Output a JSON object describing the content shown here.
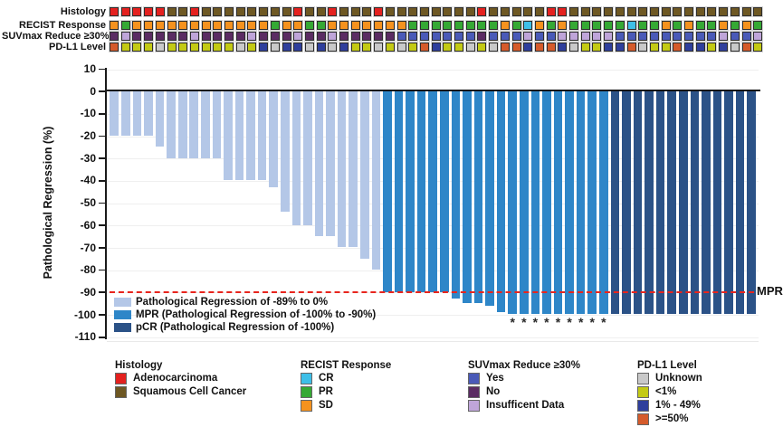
{
  "figure": {
    "ylabel": "Pathological Regression (%)",
    "mpr_label": "MPR",
    "asterisk_symbol": "*"
  },
  "tracks": {
    "labels": [
      "Histology",
      "RECIST Response",
      "SUVmax Reduce ≥30%",
      "PD-L1 Level"
    ],
    "palette": {
      "adeno": "#e4211f",
      "squam": "#6e5823",
      "cr": "#3ebfe8",
      "pr": "#35a934",
      "sd": "#f5921e",
      "yes": "#4a5ab8",
      "no": "#5b2c63",
      "insuf": "#bfa5d9",
      "unk": "#c9c9c9",
      "lt1": "#c3ca14",
      "p1_49": "#2f3f9c",
      "ge50": "#d55b2b"
    },
    "rows": [
      {
        "name": "histology",
        "keys": [
          "adeno",
          "adeno",
          "adeno",
          "adeno",
          "adeno",
          "squam",
          "squam",
          "adeno",
          "squam",
          "squam",
          "squam",
          "squam",
          "squam",
          "squam",
          "squam",
          "squam",
          "adeno",
          "squam",
          "squam",
          "adeno",
          "squam",
          "squam",
          "squam",
          "adeno",
          "squam",
          "squam",
          "squam",
          "squam",
          "squam",
          "squam",
          "squam",
          "squam",
          "adeno",
          "squam",
          "squam",
          "squam",
          "squam",
          "squam",
          "adeno",
          "adeno",
          "squam",
          "squam",
          "squam",
          "squam",
          "squam",
          "squam",
          "squam",
          "squam",
          "squam",
          "squam",
          "squam",
          "squam",
          "squam",
          "squam",
          "squam",
          "squam",
          "squam"
        ]
      },
      {
        "name": "recist-response",
        "keys": [
          "sd",
          "pr",
          "sd",
          "sd",
          "sd",
          "sd",
          "sd",
          "sd",
          "sd",
          "sd",
          "sd",
          "sd",
          "sd",
          "sd",
          "pr",
          "sd",
          "sd",
          "pr",
          "pr",
          "sd",
          "sd",
          "sd",
          "sd",
          "sd",
          "sd",
          "sd",
          "pr",
          "pr",
          "pr",
          "pr",
          "pr",
          "pr",
          "pr",
          "pr",
          "sd",
          "pr",
          "cr",
          "sd",
          "pr",
          "sd",
          "pr",
          "pr",
          "pr",
          "pr",
          "pr",
          "cr",
          "pr",
          "pr",
          "sd",
          "pr",
          "sd",
          "pr",
          "pr",
          "sd",
          "pr",
          "sd",
          "pr"
        ]
      },
      {
        "name": "suvmax-reduce",
        "keys": [
          "no",
          "insuf",
          "no",
          "no",
          "no",
          "no",
          "no",
          "insuf",
          "no",
          "no",
          "no",
          "no",
          "insuf",
          "no",
          "no",
          "no",
          "insuf",
          "no",
          "no",
          "insuf",
          "no",
          "no",
          "no",
          "no",
          "no",
          "yes",
          "yes",
          "yes",
          "yes",
          "yes",
          "yes",
          "yes",
          "no",
          "yes",
          "yes",
          "yes",
          "insuf",
          "yes",
          "yes",
          "insuf",
          "insuf",
          "insuf",
          "insuf",
          "insuf",
          "yes",
          "yes",
          "yes",
          "yes",
          "yes",
          "yes",
          "yes",
          "yes",
          "yes",
          "insuf",
          "yes",
          "yes",
          "insuf"
        ]
      },
      {
        "name": "pdl1-level",
        "keys": [
          "ge50",
          "lt1",
          "lt1",
          "lt1",
          "unk",
          "lt1",
          "lt1",
          "lt1",
          "lt1",
          "lt1",
          "lt1",
          "unk",
          "lt1",
          "p1_49",
          "unk",
          "p1_49",
          "p1_49",
          "unk",
          "p1_49",
          "unk",
          "p1_49",
          "lt1",
          "lt1",
          "unk",
          "lt1",
          "unk",
          "lt1",
          "ge50",
          "p1_49",
          "lt1",
          "lt1",
          "unk",
          "lt1",
          "unk",
          "ge50",
          "ge50",
          "p1_49",
          "ge50",
          "ge50",
          "p1_49",
          "unk",
          "lt1",
          "lt1",
          "p1_49",
          "p1_49",
          "ge50",
          "unk",
          "lt1",
          "lt1",
          "ge50",
          "p1_49",
          "p1_49",
          "lt1",
          "p1_49",
          "unk",
          "ge50",
          "lt1"
        ]
      }
    ]
  },
  "chart_data": {
    "type": "bar",
    "title": "",
    "xlabel": "",
    "ylabel": "Pathological Regression (%)",
    "ylim": [
      -110,
      10
    ],
    "yticks": [
      10,
      0,
      -10,
      -20,
      -30,
      -40,
      -50,
      -60,
      -70,
      -80,
      -90,
      -100,
      -110
    ],
    "grid": "faint horizontal gridlines every 10%",
    "n_patients": 57,
    "series": [
      {
        "name": "Pathological Regression (%)",
        "values": [
          -20,
          -20,
          -20,
          -20,
          -25,
          -30,
          -30,
          -30,
          -30,
          -30,
          -40,
          -40,
          -40,
          -40,
          -43,
          -54,
          -60,
          -60,
          -65,
          -65,
          -70,
          -70,
          -75,
          -80,
          -90,
          -90,
          -90,
          -90,
          -90,
          -90,
          -93,
          -95,
          -95,
          -96,
          -99,
          -100,
          -100,
          -100,
          -100,
          -100,
          -100,
          -100,
          -100,
          -100,
          -100,
          -100,
          -100,
          -100,
          -100,
          -100,
          -100,
          -100,
          -100,
          -100,
          -100,
          -100,
          -100
        ]
      }
    ],
    "bar_groups": [
      "reg",
      "reg",
      "reg",
      "reg",
      "reg",
      "reg",
      "reg",
      "reg",
      "reg",
      "reg",
      "reg",
      "reg",
      "reg",
      "reg",
      "reg",
      "reg",
      "reg",
      "reg",
      "reg",
      "reg",
      "reg",
      "reg",
      "reg",
      "reg",
      "mpr",
      "mpr",
      "mpr",
      "mpr",
      "mpr",
      "mpr",
      "mpr",
      "mpr",
      "mpr",
      "mpr",
      "mpr",
      "mpr",
      "mpr",
      "mpr",
      "mpr",
      "mpr",
      "mpr",
      "mpr",
      "mpr",
      "mpr",
      "pcr",
      "pcr",
      "pcr",
      "pcr",
      "pcr",
      "pcr",
      "pcr",
      "pcr",
      "pcr",
      "pcr",
      "pcr",
      "pcr",
      "pcr"
    ],
    "group_colors": {
      "reg": "#b4c7e7",
      "mpr": "#2e86c8",
      "pcr": "#2b5287"
    },
    "reference_line": {
      "value": -90,
      "style": "dashed",
      "color": "#e8251d",
      "label": "MPR"
    },
    "asterisk_bar_indices": [
      36,
      37,
      38,
      39,
      40,
      41,
      42,
      43,
      44
    ],
    "legend_position": "inside bottom-left",
    "legend": [
      {
        "key": "reg",
        "color": "#b4c7e7",
        "label": "Pathological Regression of -89% to 0%"
      },
      {
        "key": "mpr",
        "color": "#2e86c8",
        "label": "MPR (Pathological Regression of -100% to -90%)"
      },
      {
        "key": "pcr",
        "color": "#2b5287",
        "label": "pCR (Pathological Regression of -100%)"
      }
    ]
  },
  "legend_groups": [
    {
      "title": "Histology",
      "items": [
        {
          "color": "#e4211f",
          "label": "Adenocarcinoma"
        },
        {
          "color": "#6e5823",
          "label": "Squamous Cell Cancer"
        }
      ]
    },
    {
      "title": "RECIST Response",
      "items": [
        {
          "color": "#3ebfe8",
          "label": "CR"
        },
        {
          "color": "#35a934",
          "label": "PR"
        },
        {
          "color": "#f5921e",
          "label": "SD"
        }
      ]
    },
    {
      "title": "SUVmax Reduce ≥30%",
      "items": [
        {
          "color": "#4a5ab8",
          "label": "Yes"
        },
        {
          "color": "#5b2c63",
          "label": "No"
        },
        {
          "color": "#bfa5d9",
          "label": "Insufficent Data"
        }
      ]
    },
    {
      "title": "PD-L1 Level",
      "items": [
        {
          "color": "#c9c9c9",
          "label": "Unknown"
        },
        {
          "color": "#c3ca14",
          "label": "<1%"
        },
        {
          "color": "#2f3f9c",
          "label": "1% - 49%"
        },
        {
          "color": "#d55b2b",
          "label": ">=50%"
        }
      ]
    }
  ]
}
